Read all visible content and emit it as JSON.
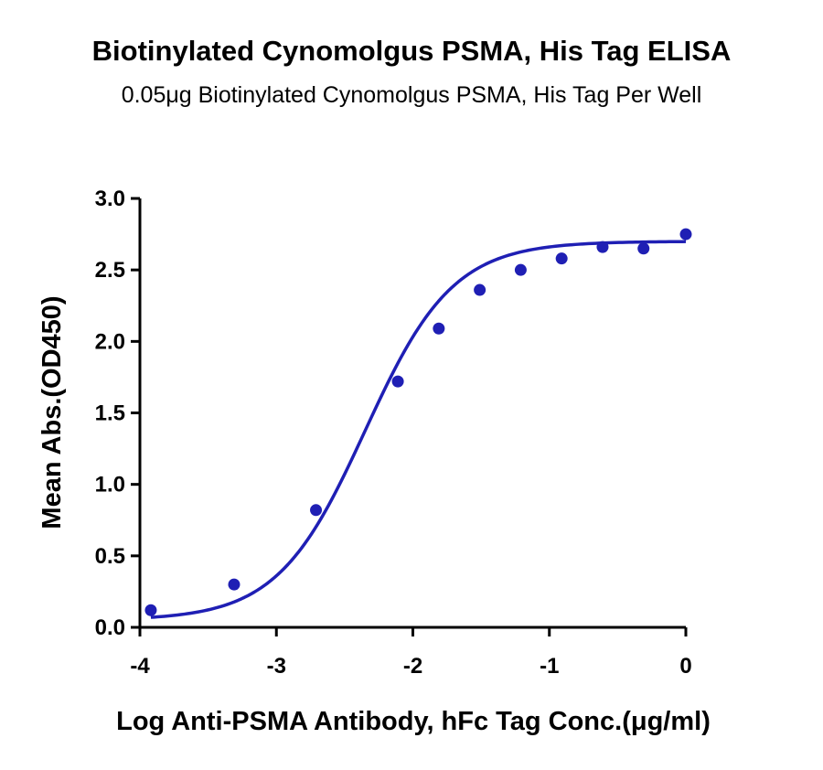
{
  "chart_data": {
    "type": "scatter",
    "title": "Biotinylated Cynomolgus PSMA, His Tag ELISA",
    "subtitle": "0.05μg Biotinylated Cynomolgus PSMA, His Tag Per Well",
    "xlabel": "Log Anti-PSMA Antibody, hFc Tag Conc.(μg/ml)",
    "ylabel": "Mean Abs.(OD450)",
    "xlim": [
      -4,
      0
    ],
    "ylim": [
      0,
      3.0
    ],
    "x_ticks": [
      -4,
      -3,
      -2,
      -1,
      0
    ],
    "x_tick_labels": [
      "-4",
      "-3",
      "-2",
      "-1",
      "0"
    ],
    "y_ticks": [
      0,
      0.5,
      1.0,
      1.5,
      2.0,
      2.5,
      3.0
    ],
    "y_tick_labels": [
      "0.0",
      "0.5",
      "1.0",
      "1.5",
      "2.0",
      "2.5",
      "3.0"
    ],
    "grid": false,
    "color": "#1f1fb4",
    "points": {
      "x": [
        -3.92,
        -3.31,
        -2.71,
        -2.11,
        -1.81,
        -1.51,
        -1.21,
        -0.91,
        -0.61,
        -0.31,
        0.0
      ],
      "y": [
        0.12,
        0.3,
        0.82,
        1.72,
        2.09,
        2.36,
        2.5,
        2.58,
        2.66,
        2.65,
        2.75
      ]
    },
    "fit_curve": {
      "model": "4PL",
      "bottom": 0.05,
      "top": 2.7,
      "logEC50": -2.35,
      "hill": 1.35
    }
  }
}
